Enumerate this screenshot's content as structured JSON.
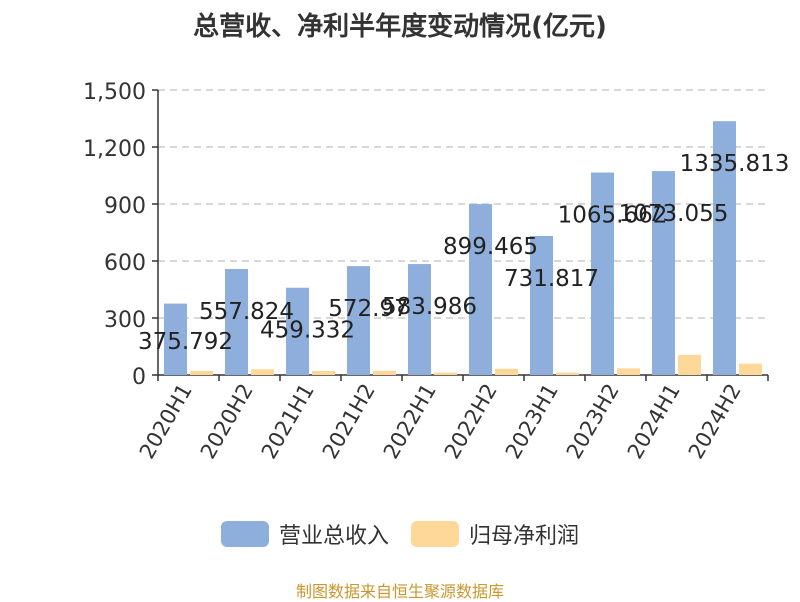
{
  "title": "总营收、净利半年度变动情况(亿元)",
  "source": "制图数据来自恒生聚源数据库",
  "colors": {
    "revenue": "#8eaedb",
    "net_profit": "#fdd898"
  },
  "chart_data": {
    "type": "bar",
    "title": "总营收、净利半年度变动情况(亿元)",
    "categories": [
      "2020H1",
      "2020H2",
      "2021H1",
      "2021H2",
      "2022H1",
      "2022H2",
      "2023H1",
      "2023H2",
      "2024H1",
      "2024H2"
    ],
    "series": [
      {
        "name": "营业总收入",
        "values": [
          375.792,
          557.824,
          459.332,
          572.97,
          583.986,
          899.465,
          731.817,
          1065.662,
          1073.055,
          1335.813
        ],
        "labels": [
          "375.792",
          "557.824",
          "459.332",
          "572.97",
          "583.986",
          "899.465",
          "731.817",
          "1065.662",
          "1073.055",
          "1335.813"
        ]
      },
      {
        "name": "归母净利润",
        "values": [
          22,
          30,
          21,
          22,
          13,
          33,
          13,
          35,
          106,
          60
        ]
      }
    ],
    "ylim": [
      0,
      1500
    ],
    "yticks": [
      "0",
      "300",
      "600",
      "900",
      "1,200",
      "1,500"
    ],
    "grid": true,
    "legend_position": "bottom"
  }
}
